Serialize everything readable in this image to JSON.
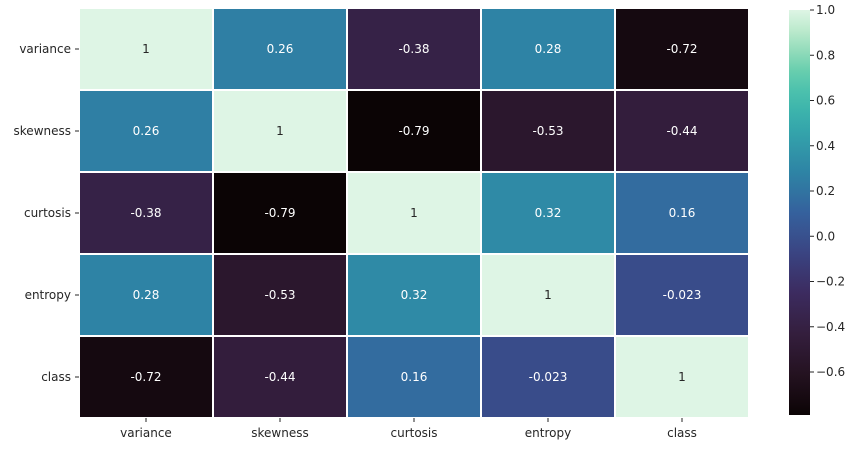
{
  "chart_data": {
    "type": "heatmap",
    "title": "",
    "xlabel": "",
    "ylabel": "",
    "x_categories": [
      "variance",
      "skewness",
      "curtosis",
      "entropy",
      "class"
    ],
    "y_categories": [
      "variance",
      "skewness",
      "curtosis",
      "entropy",
      "class"
    ],
    "values": [
      [
        1,
        0.26,
        -0.38,
        0.28,
        -0.72
      ],
      [
        0.26,
        1,
        -0.79,
        -0.53,
        -0.44
      ],
      [
        -0.38,
        -0.79,
        1,
        0.32,
        0.16
      ],
      [
        0.28,
        -0.53,
        0.32,
        1,
        -0.023
      ],
      [
        -0.72,
        -0.44,
        0.16,
        -0.023,
        1
      ]
    ],
    "annotations": [
      [
        "1",
        "0.26",
        "-0.38",
        "0.28",
        "-0.72"
      ],
      [
        "0.26",
        "1",
        "-0.79",
        "-0.53",
        "-0.44"
      ],
      [
        "-0.38",
        "-0.79",
        "1",
        "0.32",
        "0.16"
      ],
      [
        "0.28",
        "-0.53",
        "0.32",
        "1",
        "-0.023"
      ],
      [
        "-0.72",
        "-0.44",
        "0.16",
        "-0.023",
        "1"
      ]
    ],
    "colormap": "mako",
    "vmin": -0.79,
    "vmax": 1.0,
    "colorbar": {
      "ticks": [
        1.0,
        0.8,
        0.6,
        0.4,
        0.2,
        0.0,
        -0.2,
        -0.4,
        -0.6
      ],
      "tick_labels": [
        "1.0",
        "0.8",
        "0.6",
        "0.4",
        "0.2",
        "0.0",
        "−0.2",
        "−0.4",
        "−0.6"
      ]
    },
    "grid": false,
    "cell_separator_color": "#ffffff"
  }
}
